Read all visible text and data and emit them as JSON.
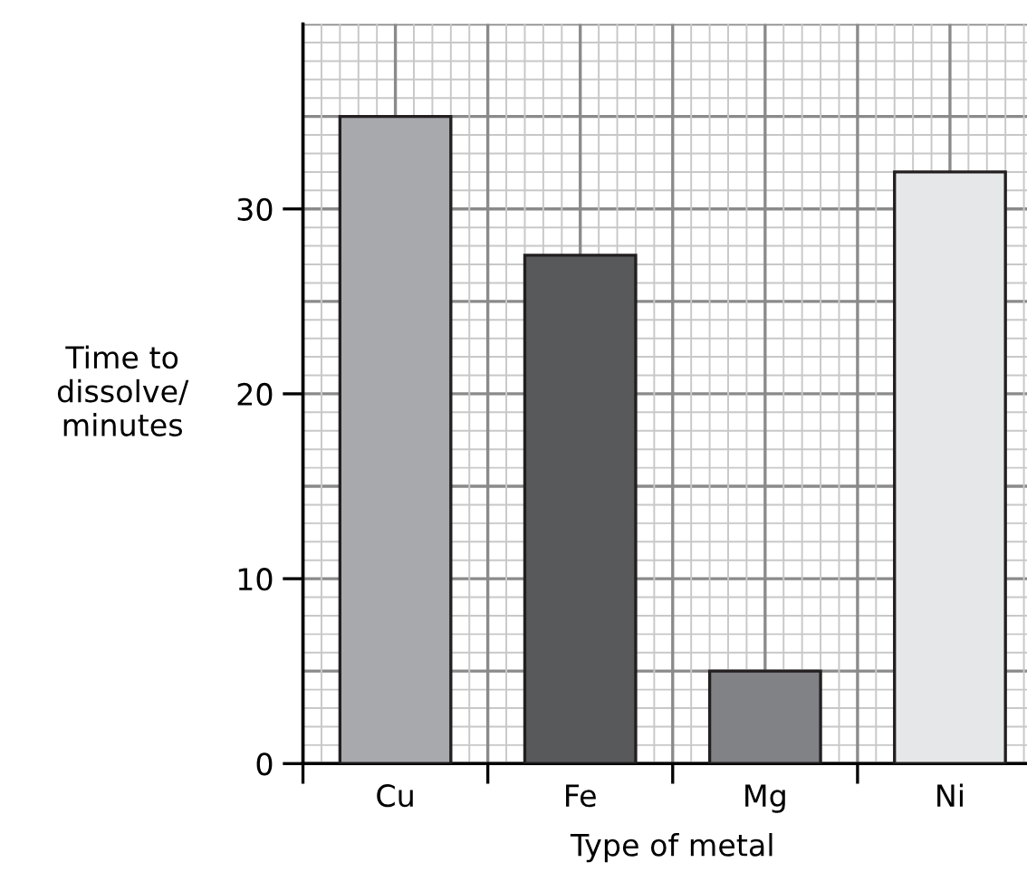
{
  "chart_data": {
    "type": "bar",
    "xlabel": "Type of metal",
    "ylabel": "Time to\ndissolve/\nminutes",
    "categories": [
      "Cu",
      "Fe",
      "Mg",
      "Ni"
    ],
    "values": [
      35,
      27.5,
      5,
      32
    ],
    "colors": [
      "#a7a9ac",
      "#58595b",
      "#808285",
      "#e6e7e8"
    ],
    "ylim": [
      0,
      40
    ],
    "yticks": [
      0,
      10,
      20,
      30
    ],
    "grid": true
  }
}
